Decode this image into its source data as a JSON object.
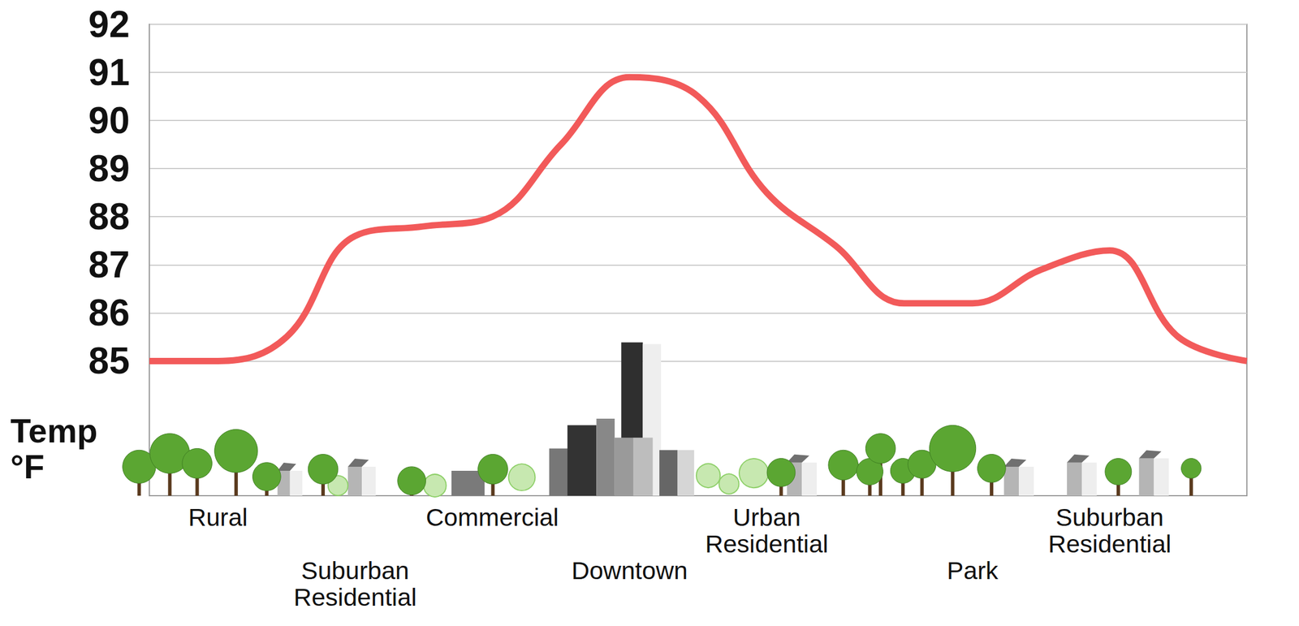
{
  "chart_data": {
    "type": "line",
    "categories": [
      null,
      "Rural",
      null,
      "Suburban Residential",
      null,
      "Commercial",
      null,
      "Downtown",
      null,
      "Urban Residential",
      null,
      null,
      "Park",
      null,
      "Suburban Residential",
      null,
      null
    ],
    "values": [
      85.0,
      85.0,
      85.5,
      87.6,
      87.8,
      88.0,
      89.5,
      90.9,
      90.5,
      88.5,
      87.4,
      86.2,
      86.2,
      86.9,
      87.3,
      85.5,
      85.0
    ],
    "color": "#f25a5a",
    "ylim": [
      82.2,
      92
    ],
    "yticks": [
      85,
      86,
      87,
      88,
      89,
      90,
      91,
      92
    ],
    "y_label": "Temp °F",
    "grid": true
  }
}
